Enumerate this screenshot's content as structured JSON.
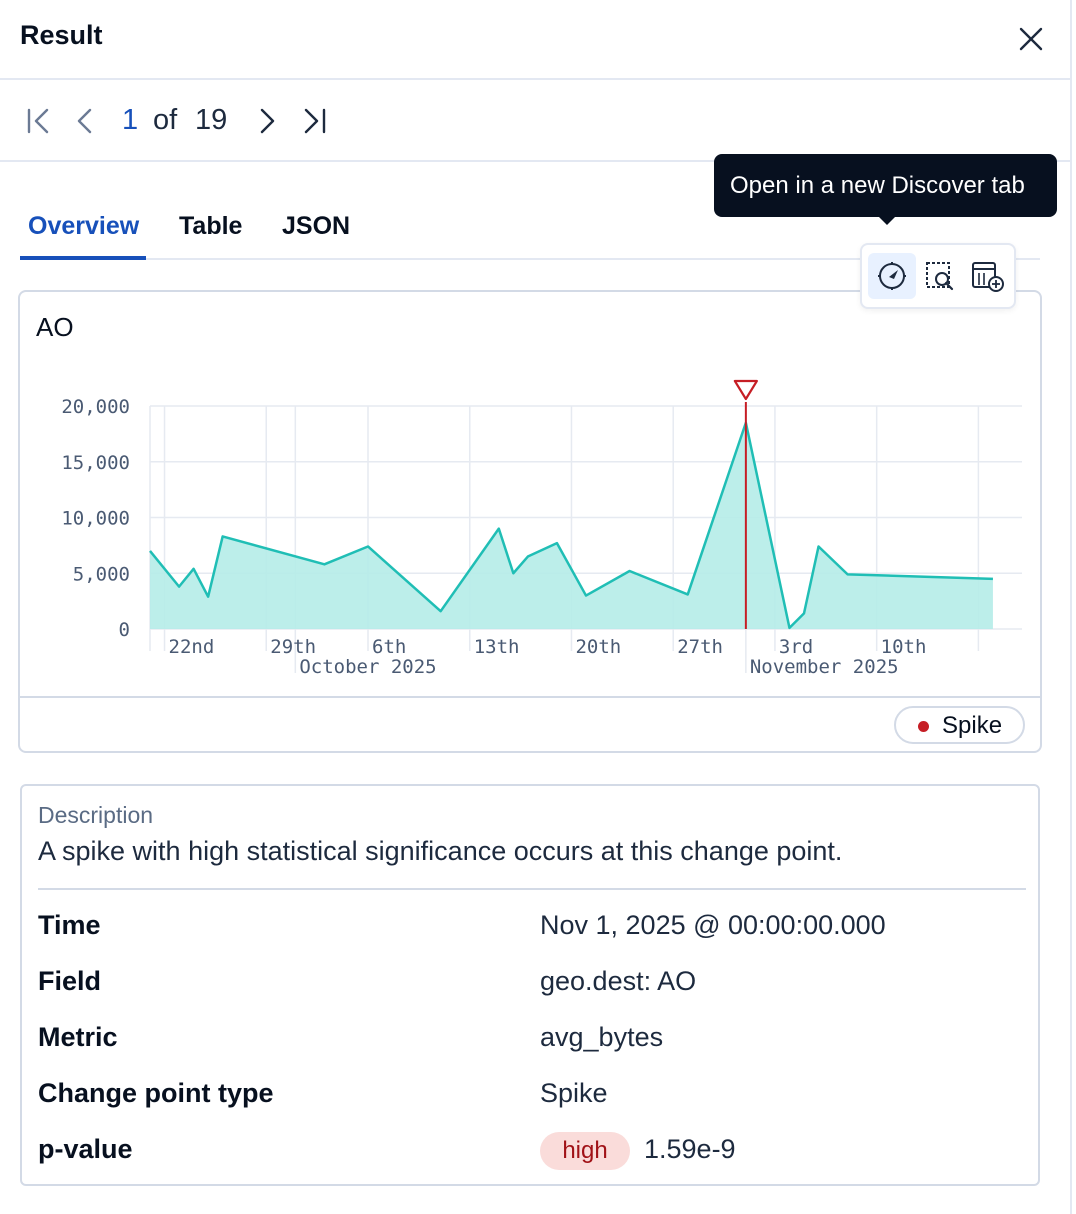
{
  "header": {
    "title": "Result",
    "close_icon": "close-icon"
  },
  "pager": {
    "current": "1",
    "of": "of",
    "total": "19"
  },
  "tabs": [
    "Overview",
    "Table",
    "JSON"
  ],
  "active_tab": "Overview",
  "tooltip": "Open in a new Discover tab",
  "actions": [
    "compass-icon",
    "inspect-icon",
    "add-to-dashboard-icon"
  ],
  "chart": {
    "title": "AO",
    "legend_label": "Spike",
    "colors": {
      "series": "#20beb5",
      "area": "#b5ece8",
      "spike": "#c61e25"
    }
  },
  "chart_data": {
    "type": "area",
    "title": "AO",
    "xlabel": "",
    "ylabel": "",
    "ylim": [
      0,
      20000
    ],
    "y_ticks": [
      "20,000",
      "15,000",
      "10,000",
      "5,000",
      "0"
    ],
    "x_ticks": [
      "22nd",
      "29th",
      "6th",
      "13th",
      "20th",
      "27th",
      "3rd",
      "10th"
    ],
    "x_month_labels": [
      "October 2025",
      "November 2025"
    ],
    "x": [
      "2025-09-21",
      "2025-09-23",
      "2025-09-24",
      "2025-09-25",
      "2025-09-26",
      "2025-10-03",
      "2025-10-06",
      "2025-10-11",
      "2025-10-15",
      "2025-10-16",
      "2025-10-17",
      "2025-10-19",
      "2025-10-21",
      "2025-10-24",
      "2025-10-28",
      "2025-11-01",
      "2025-11-04",
      "2025-11-05",
      "2025-11-06",
      "2025-11-08",
      "2025-11-18"
    ],
    "series": [
      {
        "values": [
          7000,
          3800,
          5400,
          2900,
          8300,
          5800,
          7400,
          1600,
          9000,
          5000,
          6500,
          7700,
          3000,
          5200,
          3100,
          18500,
          100,
          1400,
          7400,
          4900,
          4500
        ]
      }
    ],
    "annotations": [
      {
        "x": "2025-11-01",
        "label": "Spike"
      }
    ],
    "grid": true
  },
  "description": {
    "label": "Description",
    "text": "A spike with high statistical significance occurs at this change point."
  },
  "details": [
    {
      "label": "Time",
      "value": "Nov 1, 2025 @ 00:00:00.000"
    },
    {
      "label": "Field",
      "value": "geo.dest: AO"
    },
    {
      "label": "Metric",
      "value": "avg_bytes"
    },
    {
      "label": "Change point type",
      "value": "Spike"
    },
    {
      "label": "p-value",
      "badge": "high",
      "value": "1.59e-9"
    }
  ]
}
